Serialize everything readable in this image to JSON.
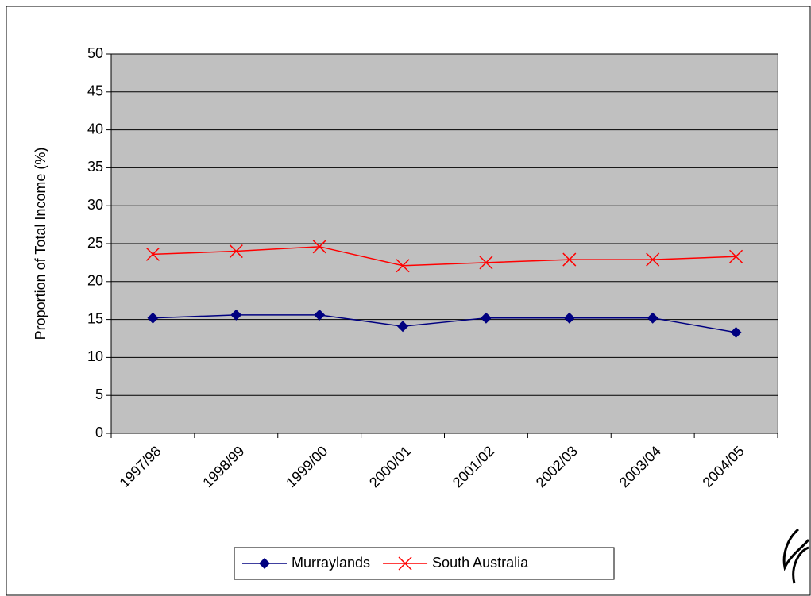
{
  "chart_data": {
    "type": "line",
    "y_label": "Proportion of Total Income (%)",
    "categories": [
      "1997/98",
      "1998/99",
      "1999/00",
      "2000/01",
      "2001/02",
      "2002/03",
      "2003/04",
      "2004/05"
    ],
    "series": [
      {
        "name": "Murraylands",
        "color": "#000080",
        "marker": "diamond",
        "values": [
          15.2,
          15.6,
          15.6,
          14.1,
          15.2,
          15.2,
          15.2,
          13.3
        ]
      },
      {
        "name": "South Australia",
        "color": "#ff0000",
        "marker": "x",
        "values": [
          23.6,
          24.0,
          24.6,
          22.1,
          22.5,
          22.9,
          22.9,
          23.3
        ]
      }
    ],
    "ylim": [
      0,
      50
    ],
    "yticks": [
      0,
      5,
      10,
      15,
      20,
      25,
      30,
      35,
      40,
      45,
      50
    ],
    "grid": true,
    "plot_background": "#c0c0c0",
    "legend": "bottom"
  }
}
